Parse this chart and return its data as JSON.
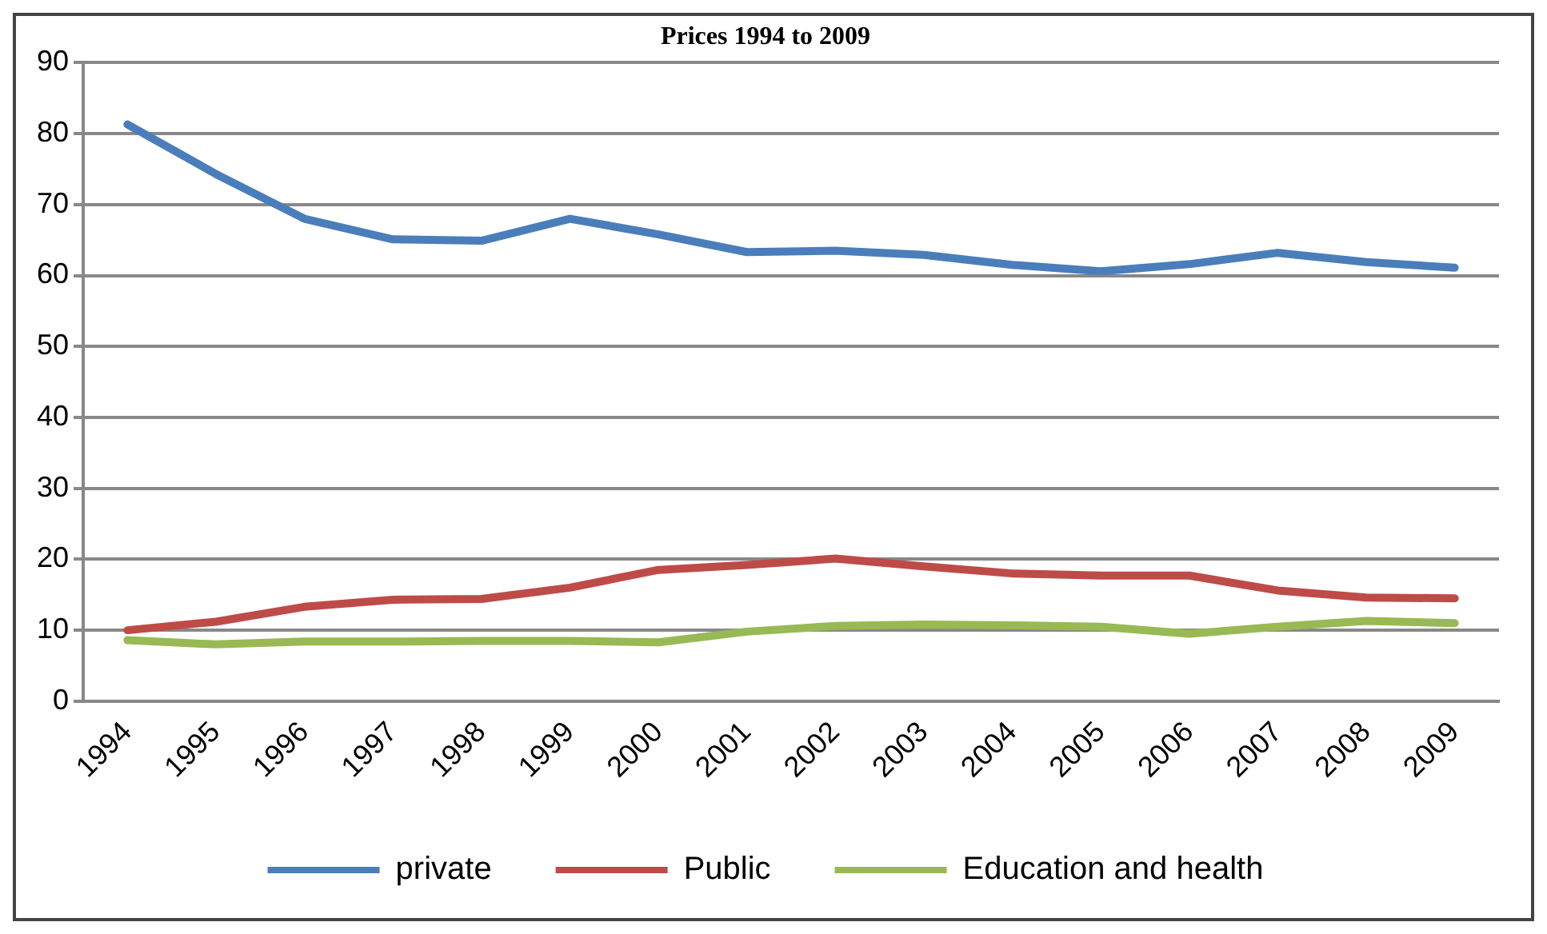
{
  "chart_data": {
    "type": "line",
    "title": "Prices 1994 to 2009",
    "categories": [
      "1994",
      "1995",
      "1996",
      "1997",
      "1998",
      "1999",
      "2000",
      "2001",
      "2002",
      "2003",
      "2004",
      "2005",
      "2006",
      "2007",
      "2008",
      "2009"
    ],
    "series": [
      {
        "name": "private",
        "color": "#4a7ebb",
        "values": [
          81.3,
          74.3,
          68,
          65.1,
          64.9,
          68,
          65.8,
          63.3,
          63.5,
          62.9,
          61.5,
          60.6,
          61.6,
          63.2,
          61.9,
          61.1
        ]
      },
      {
        "name": "Public",
        "color": "#be4b48",
        "values": [
          10,
          11.2,
          13.3,
          14.3,
          14.4,
          16,
          18.5,
          19.2,
          20.1,
          19,
          18,
          17.7,
          17.7,
          15.6,
          14.6,
          14.5
        ]
      },
      {
        "name": "Education and health",
        "color": "#98b954",
        "values": [
          8.6,
          8,
          8.4,
          8.4,
          8.5,
          8.5,
          8.3,
          9.8,
          10.6,
          10.8,
          10.7,
          10.5,
          9.5,
          10.5,
          11.3,
          11
        ]
      }
    ],
    "ylim": [
      0,
      90
    ],
    "yticks": [
      0,
      10,
      20,
      30,
      40,
      50,
      60,
      70,
      80,
      90
    ],
    "grid": "y",
    "legend": "bottom",
    "marker": "none",
    "line_style": "solid"
  }
}
